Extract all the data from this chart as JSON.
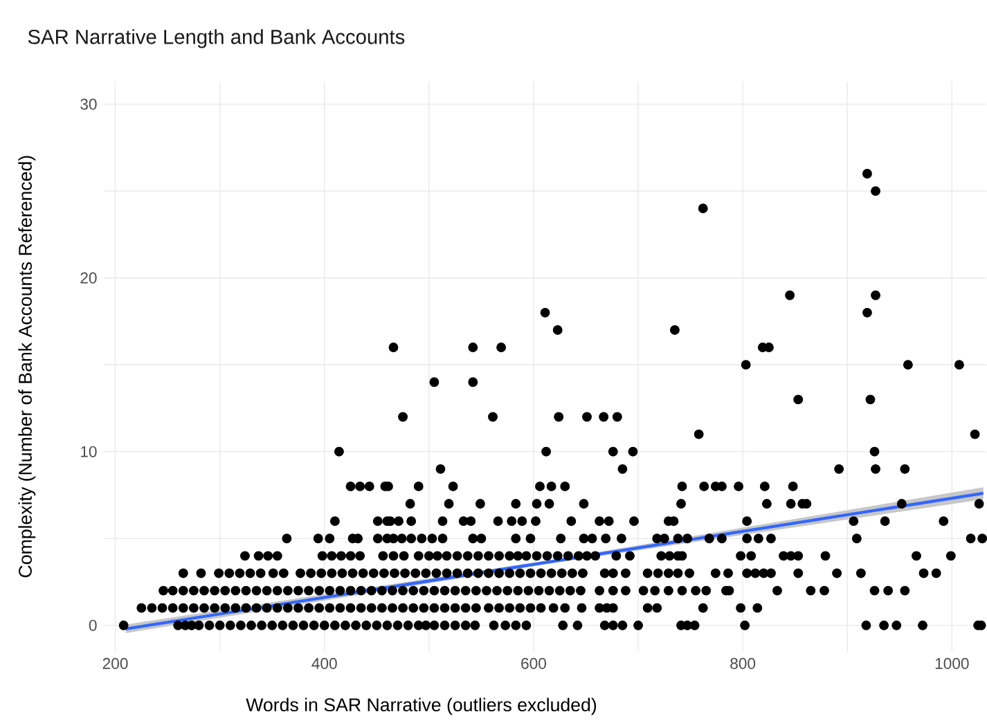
{
  "chart_data": {
    "type": "scatter",
    "title": "SAR Narrative Length and Bank Accounts",
    "xlabel": "Words in SAR Narrative (outliers excluded)",
    "ylabel": "Complexity (Number of Bank Accounts Referenced)",
    "xlim": [
      189,
      1033
    ],
    "ylim": [
      -1.5,
      31.3
    ],
    "xticks": [
      200,
      {
        "value": 300,
        "label": null
      },
      400,
      {
        "value": 500,
        "label": null
      },
      600,
      {
        "value": 700,
        "label": null
      },
      800,
      {
        "value": 900,
        "label": null
      },
      1000
    ],
    "yticks": [
      0,
      {
        "value": 5,
        "label": null
      },
      10,
      {
        "value": 15,
        "label": null
      },
      20,
      {
        "value": 25,
        "label": null
      },
      30
    ],
    "grid": true,
    "series": [
      {
        "color": "#000000",
        "marker": "circle",
        "x": [
          208,
          260,
          267,
          273,
          280,
          290,
          300,
          310,
          320,
          330,
          340,
          350,
          360,
          370,
          380,
          390,
          400,
          410,
          420,
          430,
          440,
          450,
          460,
          470,
          480,
          490,
          497,
          505,
          515,
          525,
          535,
          544,
          562,
          573,
          583,
          593,
          628,
          642,
          668,
          676,
          685,
          700,
          741,
          747,
          754,
          802,
          918,
          935,
          947,
          972,
          1025,
          1028,
          225,
          235,
          245,
          255,
          265,
          275,
          285,
          295,
          305,
          315,
          325,
          335,
          345,
          355,
          365,
          375,
          385,
          395,
          405,
          415,
          425,
          435,
          445,
          455,
          465,
          475,
          485,
          495,
          505,
          515,
          525,
          535,
          545,
          557,
          567,
          577,
          587,
          597,
          607,
          619,
          630,
          646,
          663,
          670,
          676,
          709,
          718,
          762,
          798,
          814,
          246,
          255,
          265,
          275,
          285,
          295,
          305,
          315,
          325,
          335,
          345,
          355,
          365,
          375,
          385,
          395,
          405,
          415,
          425,
          435,
          445,
          455,
          465,
          475,
          485,
          495,
          505,
          515,
          525,
          535,
          545,
          555,
          565,
          575,
          585,
          595,
          605,
          615,
          625,
          635,
          645,
          663,
          676,
          688,
          705,
          716,
          729,
          742,
          755,
          765,
          784,
          787,
          833,
          865,
          878,
          926,
          939,
          955,
          265,
          282,
          299,
          309,
          319,
          329,
          339,
          351,
          361,
          377,
          387,
          397,
          407,
          417,
          427,
          437,
          447,
          457,
          467,
          477,
          487,
          497,
          507,
          517,
          527,
          537,
          547,
          557,
          567,
          577,
          587,
          597,
          607,
          617,
          627,
          637,
          647,
          668,
          676,
          688,
          709,
          719,
          729,
          738,
          749,
          774,
          786,
          804,
          812,
          820,
          827,
          853,
          890,
          913,
          973,
          985,
          324,
          337,
          346,
          355,
          398,
          407,
          416,
          425,
          434,
          456,
          466,
          476,
          490,
          500,
          508,
          517,
          527,
          537,
          547,
          557,
          567,
          577,
          585,
          593,
          603,
          613,
          623,
          633,
          643,
          651,
          659,
          679,
          692,
          722,
          730,
          738,
          742,
          798,
          808,
          839,
          846,
          853,
          879,
          966,
          999,
          364,
          394,
          405,
          427,
          432,
          451,
          460,
          466,
          474,
          483,
          493,
          503,
          513,
          542,
          550,
          583,
          597,
          626,
          648,
          656,
          669,
          684,
          718,
          725,
          738,
          747,
          768,
          780,
          804,
          815,
          827,
          909,
          1018,
          1029,
          410,
          451,
          460,
          463,
          471,
          483,
          513,
          533,
          540,
          566,
          579,
          589,
          602,
          636,
          663,
          672,
          696,
          729,
          734,
          804,
          906,
          936,
          992,
          482,
          519,
          549,
          583,
          603,
          615,
          648,
          741,
          823,
          846,
          857,
          861,
          952,
          1026,
          425,
          434,
          443,
          458,
          461,
          490,
          523,
          606,
          617,
          630,
          742,
          763,
          774,
          780,
          796,
          821,
          848,
          511,
          685,
          892,
          927,
          955,
          414,
          612,
          676,
          695,
          926,
          758,
          1022,
          475,
          561,
          624,
          651,
          667,
          680,
          853,
          922,
          505,
          542,
          803,
          958,
          1007,
          466,
          542,
          569,
          819,
          825,
          623,
          735,
          611,
          919,
          845,
          927,
          762,
          927,
          919
        ],
        "values": [
          0,
          0,
          0,
          0,
          0,
          0,
          0,
          0,
          0,
          0,
          0,
          0,
          0,
          0,
          0,
          0,
          0,
          0,
          0,
          0,
          0,
          0,
          0,
          0,
          0,
          0,
          0,
          0,
          0,
          0,
          0,
          0,
          0,
          0,
          0,
          0,
          0,
          0,
          0,
          0,
          0,
          0,
          0,
          0,
          0,
          0,
          0,
          0,
          0,
          0,
          0,
          0,
          1,
          1,
          1,
          1,
          1,
          1,
          1,
          1,
          1,
          1,
          1,
          1,
          1,
          1,
          1,
          1,
          1,
          1,
          1,
          1,
          1,
          1,
          1,
          1,
          1,
          1,
          1,
          1,
          1,
          1,
          1,
          1,
          1,
          1,
          1,
          1,
          1,
          1,
          1,
          1,
          1,
          1,
          1,
          1,
          1,
          1,
          1,
          1,
          1,
          1,
          2,
          2,
          2,
          2,
          2,
          2,
          2,
          2,
          2,
          2,
          2,
          2,
          2,
          2,
          2,
          2,
          2,
          2,
          2,
          2,
          2,
          2,
          2,
          2,
          2,
          2,
          2,
          2,
          2,
          2,
          2,
          2,
          2,
          2,
          2,
          2,
          2,
          2,
          2,
          2,
          2,
          2,
          2,
          2,
          2,
          2,
          2,
          2,
          2,
          2,
          2,
          2,
          2,
          2,
          2,
          2,
          2,
          2,
          3,
          3,
          3,
          3,
          3,
          3,
          3,
          3,
          3,
          3,
          3,
          3,
          3,
          3,
          3,
          3,
          3,
          3,
          3,
          3,
          3,
          3,
          3,
          3,
          3,
          3,
          3,
          3,
          3,
          3,
          3,
          3,
          3,
          3,
          3,
          3,
          3,
          3,
          3,
          3,
          3,
          3,
          3,
          3,
          3,
          3,
          3,
          3,
          3,
          3,
          3,
          3,
          3,
          3,
          3,
          3,
          4,
          4,
          4,
          4,
          4,
          4,
          4,
          4,
          4,
          4,
          4,
          4,
          4,
          4,
          4,
          4,
          4,
          4,
          4,
          4,
          4,
          4,
          4,
          4,
          4,
          4,
          4,
          4,
          4,
          4,
          4,
          4,
          4,
          4,
          4,
          4,
          4,
          4,
          4,
          4,
          4,
          4,
          4,
          4,
          4,
          5,
          5,
          5,
          5,
          5,
          5,
          5,
          5,
          5,
          5,
          5,
          5,
          5,
          5,
          5,
          5,
          5,
          5,
          5,
          5,
          5,
          5,
          5,
          5,
          5,
          5,
          5,
          5,
          5,
          5,
          5,
          5,
          5,
          5,
          6,
          6,
          6,
          6,
          6,
          6,
          6,
          6,
          6,
          6,
          6,
          6,
          6,
          6,
          6,
          6,
          6,
          6,
          6,
          6,
          6,
          6,
          6,
          7,
          7,
          7,
          7,
          7,
          7,
          7,
          7,
          7,
          7,
          7,
          7,
          7,
          7,
          8,
          8,
          8,
          8,
          8,
          8,
          8,
          8,
          8,
          8,
          8,
          8,
          8,
          8,
          8,
          8,
          8,
          9,
          9,
          9,
          9,
          9,
          10,
          10,
          10,
          10,
          10,
          11,
          11,
          12,
          12,
          12,
          12,
          12,
          12,
          13,
          13,
          14,
          14,
          15,
          15,
          15,
          16,
          16,
          16,
          16,
          16,
          17,
          17,
          18,
          18,
          19,
          19,
          24,
          25,
          26
        ]
      },
      {
        "type": "line",
        "color": "#3366ff",
        "line_style": "solid",
        "marker": "none",
        "x": [
          210,
          620,
          1030
        ],
        "values": [
          -0.2,
          3.7,
          7.6
        ],
        "lower": [
          -0.45,
          3.6,
          7.25
        ],
        "upper": [
          0.05,
          3.8,
          7.95
        ]
      }
    ]
  }
}
